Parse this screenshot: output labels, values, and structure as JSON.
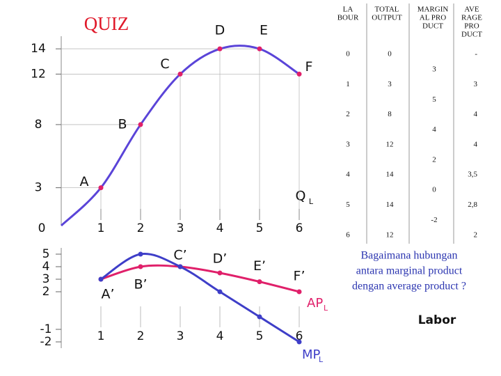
{
  "title": "QUIZ",
  "chart_data": [
    {
      "type": "line",
      "x": [
        0,
        1,
        2,
        3,
        4,
        5,
        6
      ],
      "values": [
        0,
        3,
        8,
        12,
        14,
        14,
        12
      ],
      "point_labels": [
        null,
        "A",
        "B",
        "C",
        "D",
        "E",
        "F"
      ],
      "color": "#5a44d8",
      "ylim": [
        0,
        15
      ],
      "yticks": [
        3,
        8,
        12,
        14
      ],
      "xlim": [
        0,
        6
      ],
      "xticks": [
        0,
        1,
        2,
        3,
        4,
        5,
        6
      ],
      "xlabel": "Q",
      "xlabel_sub": "L"
    },
    {
      "type": "line",
      "x": [
        1,
        2,
        3,
        4,
        5,
        6
      ],
      "series": [
        {
          "name": "AP",
          "name_sub": "L",
          "color": "#e0206a",
          "values": [
            3,
            4,
            4,
            3.5,
            2.8,
            2
          ],
          "point_labels": [
            "A’",
            "B’",
            "C’",
            "D’",
            "E’",
            "F’"
          ]
        },
        {
          "name": "MP",
          "name_sub": "L",
          "color": "#3e3ec8",
          "values": [
            3,
            5,
            4,
            2,
            0,
            -2
          ]
        }
      ],
      "ylim": [
        -2.5,
        5.5
      ],
      "yticks": [
        5,
        4,
        3,
        2,
        -1,
        -2
      ],
      "xlim": [
        0,
        6
      ],
      "xticks": [
        1,
        2,
        3,
        4,
        5,
        6
      ]
    }
  ],
  "table": {
    "headers": [
      [
        "LA",
        "BOUR"
      ],
      [
        "TOTAL",
        "OUTPUT"
      ],
      [
        "MARGIN",
        "AL PRO",
        "DUCT"
      ],
      [
        "AVE",
        "RAGE",
        "PRO",
        "DUCT"
      ]
    ],
    "rows": [
      [
        0,
        0,
        "-"
      ],
      [
        1,
        3,
        3
      ],
      [
        2,
        8,
        4
      ],
      [
        3,
        12,
        4
      ],
      [
        4,
        14,
        "3,5"
      ],
      [
        5,
        14,
        "2,8"
      ],
      [
        6,
        12,
        2
      ]
    ],
    "marginal": [
      3,
      5,
      4,
      2,
      0,
      -2
    ]
  },
  "question": [
    "Bagaimana hubungan",
    "antara marginal product",
    "dengan average product ?"
  ],
  "labor": "Labor"
}
